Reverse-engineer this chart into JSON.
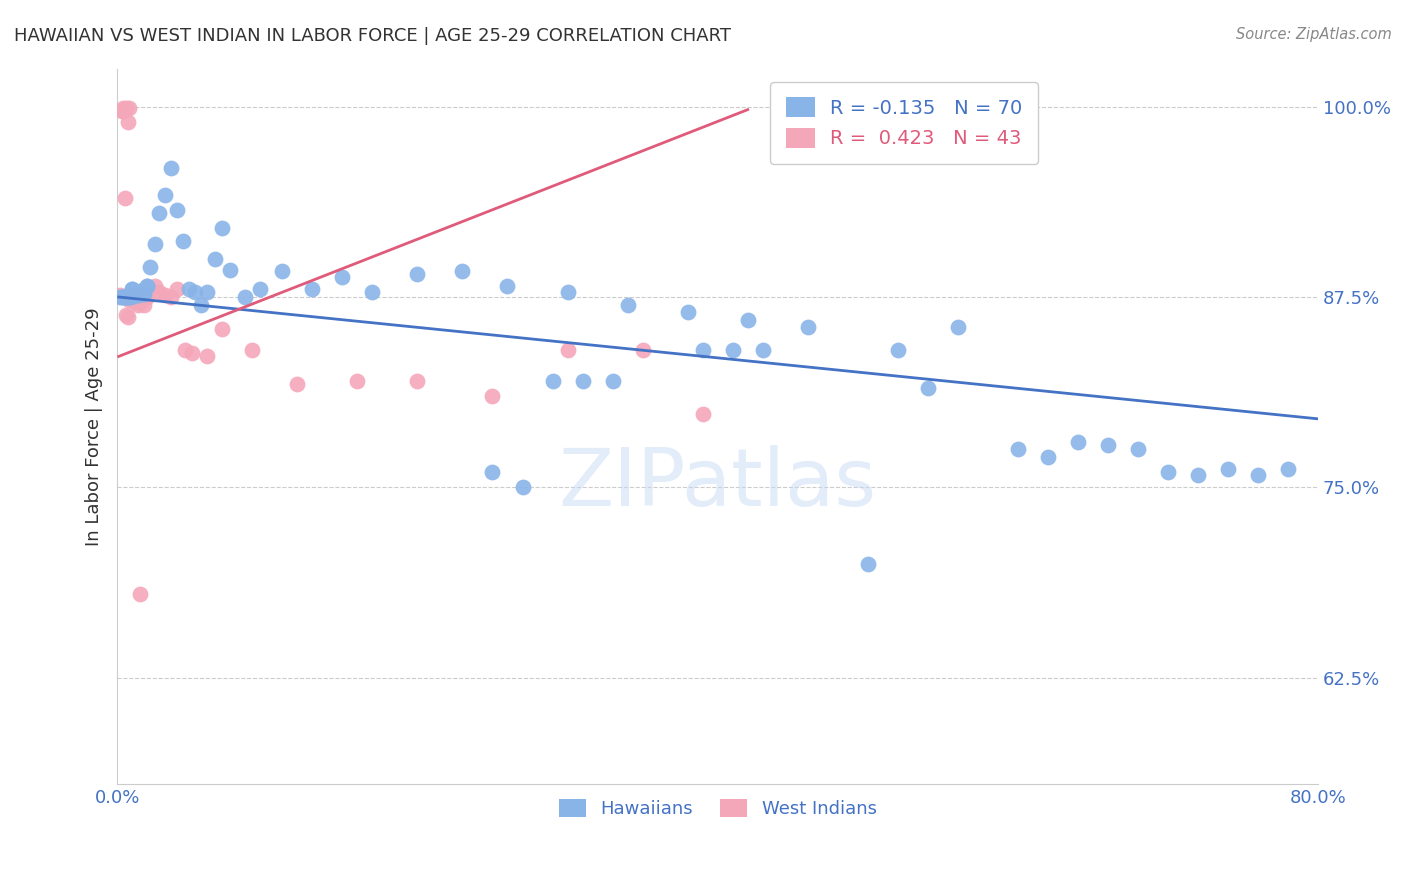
{
  "title": "HAWAIIAN VS WEST INDIAN IN LABOR FORCE | AGE 25-29 CORRELATION CHART",
  "source": "Source: ZipAtlas.com",
  "ylabel": "In Labor Force | Age 25-29",
  "xlim": [
    0.0,
    0.8
  ],
  "ylim": [
    0.555,
    1.025
  ],
  "yticks": [
    0.625,
    0.75,
    0.875,
    1.0
  ],
  "ytick_labels": [
    "62.5%",
    "75.0%",
    "87.5%",
    "100.0%"
  ],
  "xtick_positions": [
    0.0,
    0.1,
    0.2,
    0.3,
    0.4,
    0.5,
    0.6,
    0.7,
    0.8
  ],
  "xtick_labels": [
    "0.0%",
    "",
    "",
    "",
    "",
    "",
    "",
    "",
    "80.0%"
  ],
  "blue_R": -0.135,
  "blue_N": 70,
  "pink_R": 0.423,
  "pink_N": 43,
  "blue_color": "#89b4e8",
  "pink_color": "#f4a7b9",
  "blue_line_color": "#4472c4",
  "pink_line_color": "#e05a7a",
  "label_color": "#4472c4",
  "title_color": "#333333",
  "grid_color": "#cccccc",
  "watermark": "ZIPatlas",
  "hawaiians_x": [
    0.002,
    0.003,
    0.004,
    0.005,
    0.006,
    0.007,
    0.008,
    0.009,
    0.01,
    0.01,
    0.011,
    0.012,
    0.013,
    0.014,
    0.015,
    0.016,
    0.017,
    0.018,
    0.02,
    0.02,
    0.022,
    0.025,
    0.028,
    0.032,
    0.036,
    0.04,
    0.044,
    0.048,
    0.052,
    0.056,
    0.06,
    0.065,
    0.07,
    0.075,
    0.085,
    0.095,
    0.11,
    0.13,
    0.15,
    0.17,
    0.2,
    0.23,
    0.26,
    0.3,
    0.34,
    0.38,
    0.42,
    0.46,
    0.5,
    0.52,
    0.54,
    0.56,
    0.6,
    0.62,
    0.64,
    0.66,
    0.68,
    0.7,
    0.72,
    0.74,
    0.76,
    0.78,
    0.39,
    0.41,
    0.43,
    0.31,
    0.33,
    0.29,
    0.27,
    0.25
  ],
  "hawaiians_y": [
    0.875,
    0.875,
    0.875,
    0.875,
    0.875,
    0.875,
    0.875,
    0.875,
    0.88,
    0.88,
    0.878,
    0.878,
    0.876,
    0.876,
    0.879,
    0.879,
    0.877,
    0.877,
    0.882,
    0.882,
    0.895,
    0.91,
    0.93,
    0.942,
    0.96,
    0.932,
    0.912,
    0.88,
    0.878,
    0.87,
    0.878,
    0.9,
    0.92,
    0.893,
    0.875,
    0.88,
    0.892,
    0.88,
    0.888,
    0.878,
    0.89,
    0.892,
    0.882,
    0.878,
    0.87,
    0.865,
    0.86,
    0.855,
    0.7,
    0.84,
    0.815,
    0.855,
    0.775,
    0.77,
    0.78,
    0.778,
    0.775,
    0.76,
    0.758,
    0.762,
    0.758,
    0.762,
    0.84,
    0.84,
    0.84,
    0.82,
    0.82,
    0.82,
    0.75,
    0.76
  ],
  "west_indians_x": [
    0.002,
    0.003,
    0.004,
    0.004,
    0.005,
    0.005,
    0.006,
    0.006,
    0.007,
    0.007,
    0.008,
    0.008,
    0.009,
    0.01,
    0.01,
    0.011,
    0.012,
    0.013,
    0.014,
    0.015,
    0.016,
    0.017,
    0.018,
    0.02,
    0.022,
    0.025,
    0.028,
    0.032,
    0.036,
    0.04,
    0.045,
    0.05,
    0.06,
    0.07,
    0.09,
    0.12,
    0.16,
    0.2,
    0.25,
    0.3,
    0.35,
    0.39,
    0.015
  ],
  "west_indians_y": [
    0.876,
    0.997,
    0.997,
    0.999,
    0.94,
    0.998,
    0.999,
    0.863,
    0.99,
    0.862,
    0.873,
    0.999,
    0.875,
    0.873,
    0.875,
    0.876,
    0.872,
    0.875,
    0.87,
    0.876,
    0.872,
    0.876,
    0.87,
    0.875,
    0.88,
    0.882,
    0.878,
    0.876,
    0.875,
    0.88,
    0.84,
    0.838,
    0.836,
    0.854,
    0.84,
    0.818,
    0.82,
    0.82,
    0.81,
    0.84,
    0.84,
    0.798,
    0.68
  ]
}
